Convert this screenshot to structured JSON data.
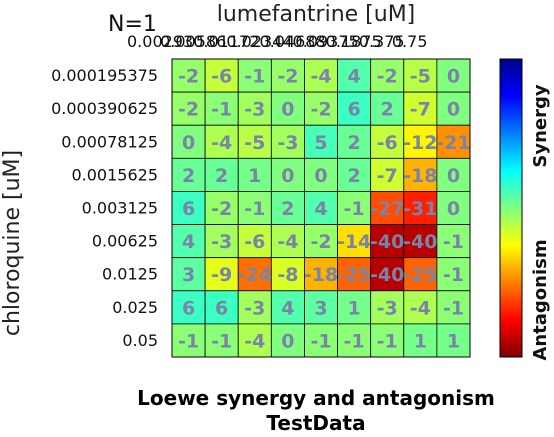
{
  "chart_data": {
    "type": "heatmap",
    "title": [
      "Loewe synergy and antagonism",
      "TestData"
    ],
    "annotation": "N=1",
    "xlabel": "lumefantrine [uM]",
    "ylabel": "chloroquine [uM]",
    "x_ticks": [
      "0.00293",
      "0.00586",
      "0.01172",
      "0.02344",
      "0.04688",
      "0.09375",
      "0.1875",
      "0.375",
      "0.75"
    ],
    "y_ticks": [
      "0.000195375",
      "0.000390625",
      "0.00078125",
      "0.0015625",
      "0.003125",
      "0.00625",
      "0.0125",
      "0.025",
      "0.05"
    ],
    "values": [
      [
        -2,
        -6,
        -1,
        -2,
        -4,
        4,
        -2,
        -5,
        0
      ],
      [
        -2,
        -1,
        -3,
        0,
        -2,
        6,
        2,
        -7,
        0
      ],
      [
        0,
        -4,
        -5,
        -3,
        5,
        2,
        -6,
        -12,
        -21
      ],
      [
        2,
        2,
        1,
        0,
        0,
        2,
        -7,
        -18,
        0
      ],
      [
        6,
        -2,
        -1,
        2,
        4,
        -1,
        -27,
        -31,
        0
      ],
      [
        4,
        -3,
        -6,
        -4,
        -2,
        -14,
        -40,
        -40,
        -1
      ],
      [
        3,
        -9,
        -24,
        -8,
        -18,
        -25,
        -40,
        -25,
        -1
      ],
      [
        6,
        6,
        -3,
        4,
        3,
        1,
        -3,
        -4,
        -1
      ],
      [
        -1,
        -1,
        -4,
        0,
        -1,
        -1,
        -1,
        1,
        1
      ]
    ],
    "colorbar": {
      "top_label": "Synergy",
      "bottom_label": "Antagonism",
      "colormap": "jet",
      "range": [
        -45,
        45
      ]
    }
  }
}
